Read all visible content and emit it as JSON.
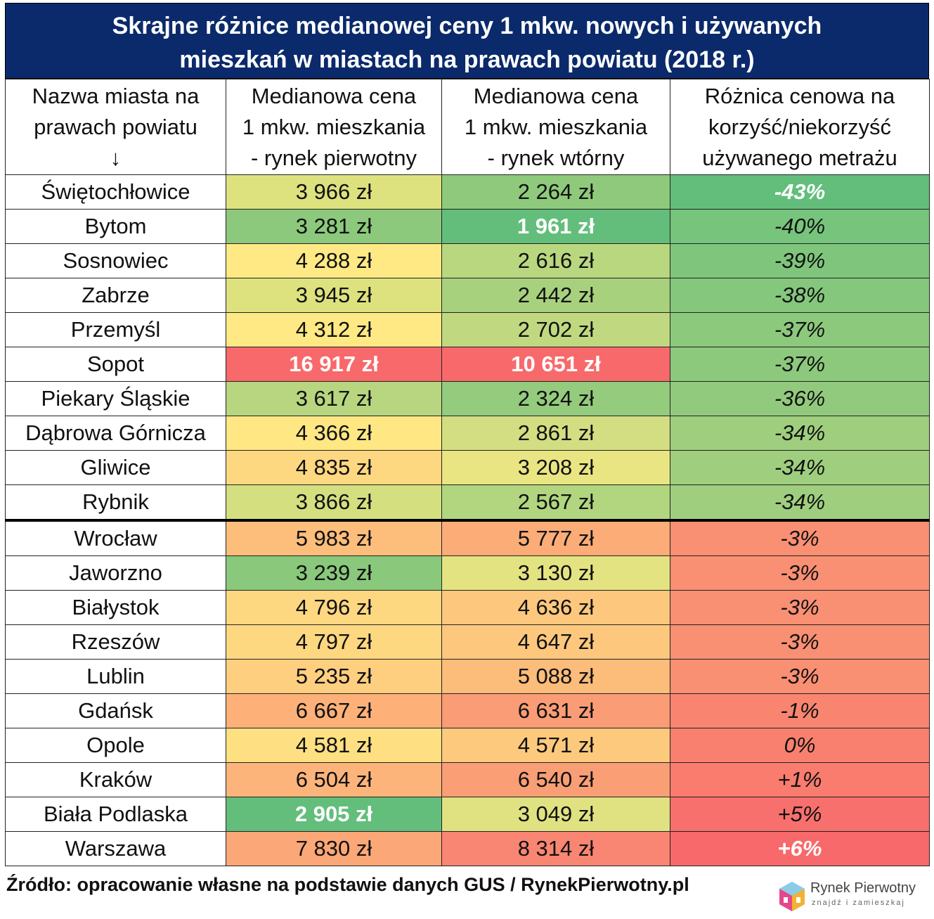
{
  "title_line1": "Skrajne różnice medianowej ceny 1 mkw. nowych i używanych",
  "title_line2": "mieszkań w miastach na prawach powiatu (2018 r.)",
  "headers": {
    "col1_l1": "Nazwa miasta na",
    "col1_l2": "prawach powiatu",
    "col1_arrow": "↓",
    "col2_l1": "Medianowa cena",
    "col2_l2": "1 mkw. mieszkania",
    "col2_l3": "- rynek pierwotny",
    "col3_l1": "Medianowa cena",
    "col3_l2": "1 mkw. mieszkania",
    "col3_l3": "- rynek wtórny",
    "col4_l1": "Różnica cenowa na",
    "col4_l2": "korzyść/niekorzyść",
    "col4_l3": "używanego metrażu"
  },
  "rows": [
    {
      "city": "Świętochłowice",
      "primary": "3 966 zł",
      "secondary": "2 264 zł",
      "diff": "-43%",
      "c_p": "#dde27e",
      "c_s": "#8fca7c",
      "c_d": "#63be7b",
      "b_p": false,
      "b_s": false,
      "b_d": true
    },
    {
      "city": "Bytom",
      "primary": "3 281 zł",
      "secondary": "1 961 zł",
      "diff": "-40%",
      "c_p": "#8dc97c",
      "c_s": "#63be7b",
      "c_d": "#77c47c",
      "b_p": false,
      "b_s": true,
      "b_d": false
    },
    {
      "city": "Sosnowiec",
      "primary": "4 288 zł",
      "secondary": "2 616 zł",
      "diff": "-39%",
      "c_p": "#ffe984",
      "c_s": "#b9d77f",
      "c_d": "#7fc67c",
      "b_p": false,
      "b_s": false,
      "b_d": false
    },
    {
      "city": "Zabrze",
      "primary": "3 945 zł",
      "secondary": "2 442 zł",
      "diff": "-38%",
      "c_p": "#dde27e",
      "c_s": "#a8d17e",
      "c_d": "#85c77c",
      "b_p": false,
      "b_s": false,
      "b_d": false
    },
    {
      "city": "Przemyśl",
      "primary": "4 312 zł",
      "secondary": "2 702 zł",
      "diff": "-37%",
      "c_p": "#ffe984",
      "c_s": "#c0d980",
      "c_d": "#8cc97d",
      "b_p": false,
      "b_s": false,
      "b_d": false
    },
    {
      "city": "Sopot",
      "primary": "16 917 zł",
      "secondary": "10 651 zł",
      "diff": "-37%",
      "c_p": "#f8696b",
      "c_s": "#f8696b",
      "c_d": "#8cc97d",
      "b_p": true,
      "b_s": true,
      "b_d": false
    },
    {
      "city": "Piekary Śląskie",
      "primary": "3 617 zł",
      "secondary": "2 324 zł",
      "diff": "-36%",
      "c_p": "#b7d67f",
      "c_s": "#94cb7d",
      "c_d": "#92ca7d",
      "b_p": false,
      "b_s": false,
      "b_d": false
    },
    {
      "city": "Dąbrowa Górnicza",
      "primary": "4 366 zł",
      "secondary": "2 861 zł",
      "diff": "-34%",
      "c_p": "#ffe783",
      "c_s": "#d2de81",
      "c_d": "#9fcf7e",
      "b_p": false,
      "b_s": false,
      "b_d": false
    },
    {
      "city": "Gliwice",
      "primary": "4 835 zł",
      "secondary": "3 208 zł",
      "diff": "-34%",
      "c_p": "#fed781",
      "c_s": "#e9e582",
      "c_d": "#9fcf7e",
      "b_p": false,
      "b_s": false,
      "b_d": false
    },
    {
      "city": "Rybnik",
      "primary": "3 866 zł",
      "secondary": "2 567 zł",
      "diff": "-34%",
      "c_p": "#d4df7f",
      "c_s": "#b2d57f",
      "c_d": "#9fcf7e",
      "b_p": false,
      "b_s": false,
      "b_d": false
    },
    {
      "city": "Wrocław",
      "primary": "5 983 zł",
      "secondary": "5 777 zł",
      "diff": "-3%",
      "c_p": "#fdbd7b",
      "c_s": "#fbac77",
      "c_d": "#f98f73",
      "b_p": false,
      "b_s": false,
      "b_d": false
    },
    {
      "city": "Jaworzno",
      "primary": "3 239 zł",
      "secondary": "3 130 zł",
      "diff": "-3%",
      "c_p": "#8ac87c",
      "c_s": "#e4e382",
      "c_d": "#f98f73",
      "b_p": false,
      "b_s": false,
      "b_d": false
    },
    {
      "city": "Białystok",
      "primary": "4 796 zł",
      "secondary": "4 636 zł",
      "diff": "-3%",
      "c_p": "#fed781",
      "c_s": "#fdc87d",
      "c_d": "#f98f73",
      "b_p": false,
      "b_s": false,
      "b_d": false
    },
    {
      "city": "Rzeszów",
      "primary": "4 797 zł",
      "secondary": "4 647 zł",
      "diff": "-3%",
      "c_p": "#fed781",
      "c_s": "#fdc87d",
      "c_d": "#f98f73",
      "b_p": false,
      "b_s": false,
      "b_d": false
    },
    {
      "city": "Lublin",
      "primary": "5 235 zł",
      "secondary": "5 088 zł",
      "diff": "-3%",
      "c_p": "#fecf7f",
      "c_s": "#fcbc7a",
      "c_d": "#f98f73",
      "b_p": false,
      "b_s": false,
      "b_d": false
    },
    {
      "city": "Gdańsk",
      "primary": "6 667 zł",
      "secondary": "6 631 zł",
      "diff": "-1%",
      "c_p": "#fdb179",
      "c_s": "#fa9c75",
      "c_d": "#f98571",
      "b_p": false,
      "b_s": false,
      "b_d": false
    },
    {
      "city": "Opole",
      "primary": "4 581 zł",
      "secondary": "4 571 zł",
      "diff": "0%",
      "c_p": "#fee082",
      "c_s": "#fdca7d",
      "c_d": "#f9806f",
      "b_p": false,
      "b_s": false,
      "b_d": false
    },
    {
      "city": "Kraków",
      "primary": "6 504 zł",
      "secondary": "6 540 zł",
      "diff": "+1%",
      "c_p": "#fdb47a",
      "c_s": "#fa9e75",
      "c_d": "#f97c6f",
      "b_p": false,
      "b_s": false,
      "b_d": false
    },
    {
      "city": "Biała Podlaska",
      "primary": "2 905 zł",
      "secondary": "3 049 zł",
      "diff": "+5%",
      "c_p": "#63be7b",
      "c_s": "#e0e282",
      "c_d": "#f8706d",
      "b_p": true,
      "b_s": false,
      "b_d": false
    },
    {
      "city": "Warszawa",
      "primary": "7 830 zł",
      "secondary": "8 314 zł",
      "diff": "+6%",
      "c_p": "#fca777",
      "c_s": "#f98672",
      "c_d": "#f8696b",
      "b_p": false,
      "b_s": false,
      "b_d": true
    }
  ],
  "source": "Źródło: opracowanie własne na podstawie danych GUS / RynekPierwotny.pl",
  "logo": {
    "name": "Rynek Pierwotny",
    "tagline": "znajdź i zamieszkaj"
  },
  "separator_after_row": 10
}
